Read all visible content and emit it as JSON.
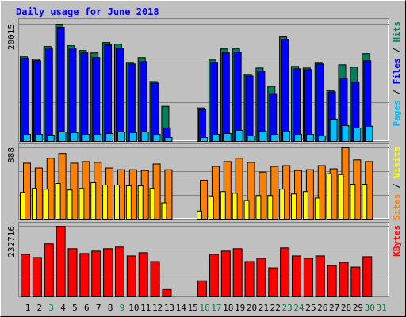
{
  "chart_data": {
    "type": "bar",
    "title": "Daily usage for June 2018",
    "separator": " / ",
    "categories": [
      "1",
      "2",
      "3",
      "4",
      "5",
      "6",
      "7",
      "8",
      "9",
      "10",
      "11",
      "12",
      "13",
      "14",
      "15",
      "16",
      "17",
      "18",
      "19",
      "20",
      "21",
      "22",
      "23",
      "24",
      "25",
      "26",
      "27",
      "28",
      "29",
      "30",
      "31"
    ],
    "category_colors": [
      "#000000",
      "#000000",
      "#008040",
      "#000000",
      "#000000",
      "#000000",
      "#000000",
      "#000000",
      "#008040",
      "#000000",
      "#000000",
      "#000000",
      "#000000",
      "#000000",
      "#000000",
      "#008040",
      "#008040",
      "#000000",
      "#000000",
      "#000000",
      "#000000",
      "#000000",
      "#008040",
      "#008040",
      "#000000",
      "#000000",
      "#000000",
      "#000000",
      "#000000",
      "#008040",
      "#008040"
    ],
    "panels": [
      {
        "ylim": [
          0,
          20015
        ],
        "yticks": [
          20015
        ],
        "legend": [
          2,
          1,
          0
        ],
        "series": [
          {
            "name": "Hits",
            "color": "#00805c",
            "values": [
              14434,
              14028,
              16207,
              20015,
              16340,
              15525,
              15116,
              16885,
              16613,
              13480,
              14298,
              10212,
              5990,
              null,
              null,
              5720,
              13890,
              15796,
              15796,
              11440,
              12528,
              9396,
              17838,
              12800,
              12528,
              13480,
              8715,
              13070,
              12665,
              14980,
              null
            ]
          },
          {
            "name": "Files",
            "color": "#0000ff",
            "values": [
              14165,
              13756,
              15799,
              19477,
              15799,
              15118,
              14301,
              16480,
              15935,
              13211,
              13620,
              9943,
              2315,
              null,
              null,
              5448,
              13484,
              15118,
              15254,
              11168,
              11986,
              8172,
              17434,
              12394,
              12258,
              13211,
              8444,
              10760,
              10079,
              13756,
              null
            ]
          },
          {
            "name": "Pages",
            "color": "#00c0ff",
            "values": [
              1226,
              1226,
              1090,
              1634,
              1498,
              1226,
              1226,
              1362,
              1634,
              1498,
              1634,
              1226,
              681,
              null,
              null,
              681,
              1226,
              1362,
              1907,
              953,
              1771,
              1226,
              1771,
              1226,
              1226,
              953,
              3800,
              2700,
              2300,
              2600,
              null
            ]
          }
        ]
      },
      {
        "ylim": [
          0,
          888
        ],
        "yticks": [
          888
        ],
        "legend": [
          0,
          1
        ],
        "series": [
          {
            "name": "Sites",
            "color": "#ff8000",
            "values": [
              696,
              636,
              757,
              817,
              696,
              716,
              706,
              636,
              615,
              615,
              605,
              686,
              615,
              null,
              null,
              484,
              656,
              716,
              757,
              706,
              585,
              656,
              666,
              605,
              615,
              666,
              626,
              888,
              737,
              716,
              null
            ]
          },
          {
            "name": "Visits",
            "color": "#ffff00",
            "values": [
              333,
              383,
              373,
              444,
              363,
              383,
              454,
              424,
              424,
              414,
              414,
              383,
              202,
              null,
              null,
              101,
              283,
              343,
              323,
              232,
              293,
              293,
              373,
              313,
              343,
              262,
              565,
              555,
              434,
              434,
              null
            ]
          }
        ]
      },
      {
        "ylim": [
          0,
          232716
        ],
        "yticks": [
          232716
        ],
        "legend": [
          0
        ],
        "series": [
          {
            "name": "KBytes",
            "color": "#ff0000",
            "values": [
              140159,
              129580,
              174537,
              232716,
              158670,
              142803,
              150737,
              158670,
              163959,
              134870,
              145448,
              116358,
              23800,
              null,
              null,
              52890,
              140159,
              150737,
              158670,
              116358,
              126936,
              95202,
              161314,
              134870,
              126936,
              134870,
              103136,
              113714,
              97847,
              132225,
              null
            ]
          }
        ]
      }
    ]
  }
}
